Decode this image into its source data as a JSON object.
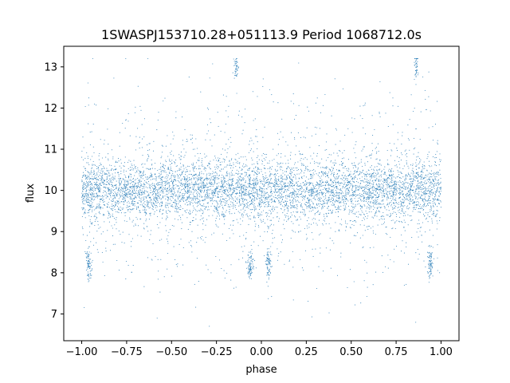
{
  "chart_data": {
    "type": "scatter",
    "title": "1SWASPJ153710.28+051113.9 Period 1068712.0s",
    "xlabel": "phase",
    "ylabel": "flux",
    "xlim": [
      -1.1,
      1.1
    ],
    "ylim": [
      6.35,
      13.5
    ],
    "x_ticks": [
      -1.0,
      -0.75,
      -0.5,
      -0.25,
      0.0,
      0.25,
      0.5,
      0.75,
      1.0
    ],
    "x_tick_labels": [
      "−1.00",
      "−0.75",
      "−0.50",
      "−0.25",
      "0.00",
      "0.25",
      "0.50",
      "0.75",
      "1.00"
    ],
    "y_ticks": [
      7,
      8,
      9,
      10,
      11,
      12,
      13
    ],
    "y_tick_labels": [
      "7",
      "8",
      "9",
      "10",
      "11",
      "12",
      "13"
    ],
    "grid": false,
    "legend": "none",
    "point_color": "#1f77b4",
    "series": [
      {
        "phase_range": [
          -1.0,
          1.0
        ],
        "flux_median": 10.0,
        "flux_core_spread": 0.35,
        "flux_min": 6.7,
        "flux_max": 13.2,
        "dip_flux": 8.2,
        "dip_phases": [
          -0.96,
          -0.06,
          0.04,
          0.94
        ],
        "peak_flux": 13.0,
        "peak_phases": [
          -0.14,
          0.86
        ]
      }
    ]
  }
}
